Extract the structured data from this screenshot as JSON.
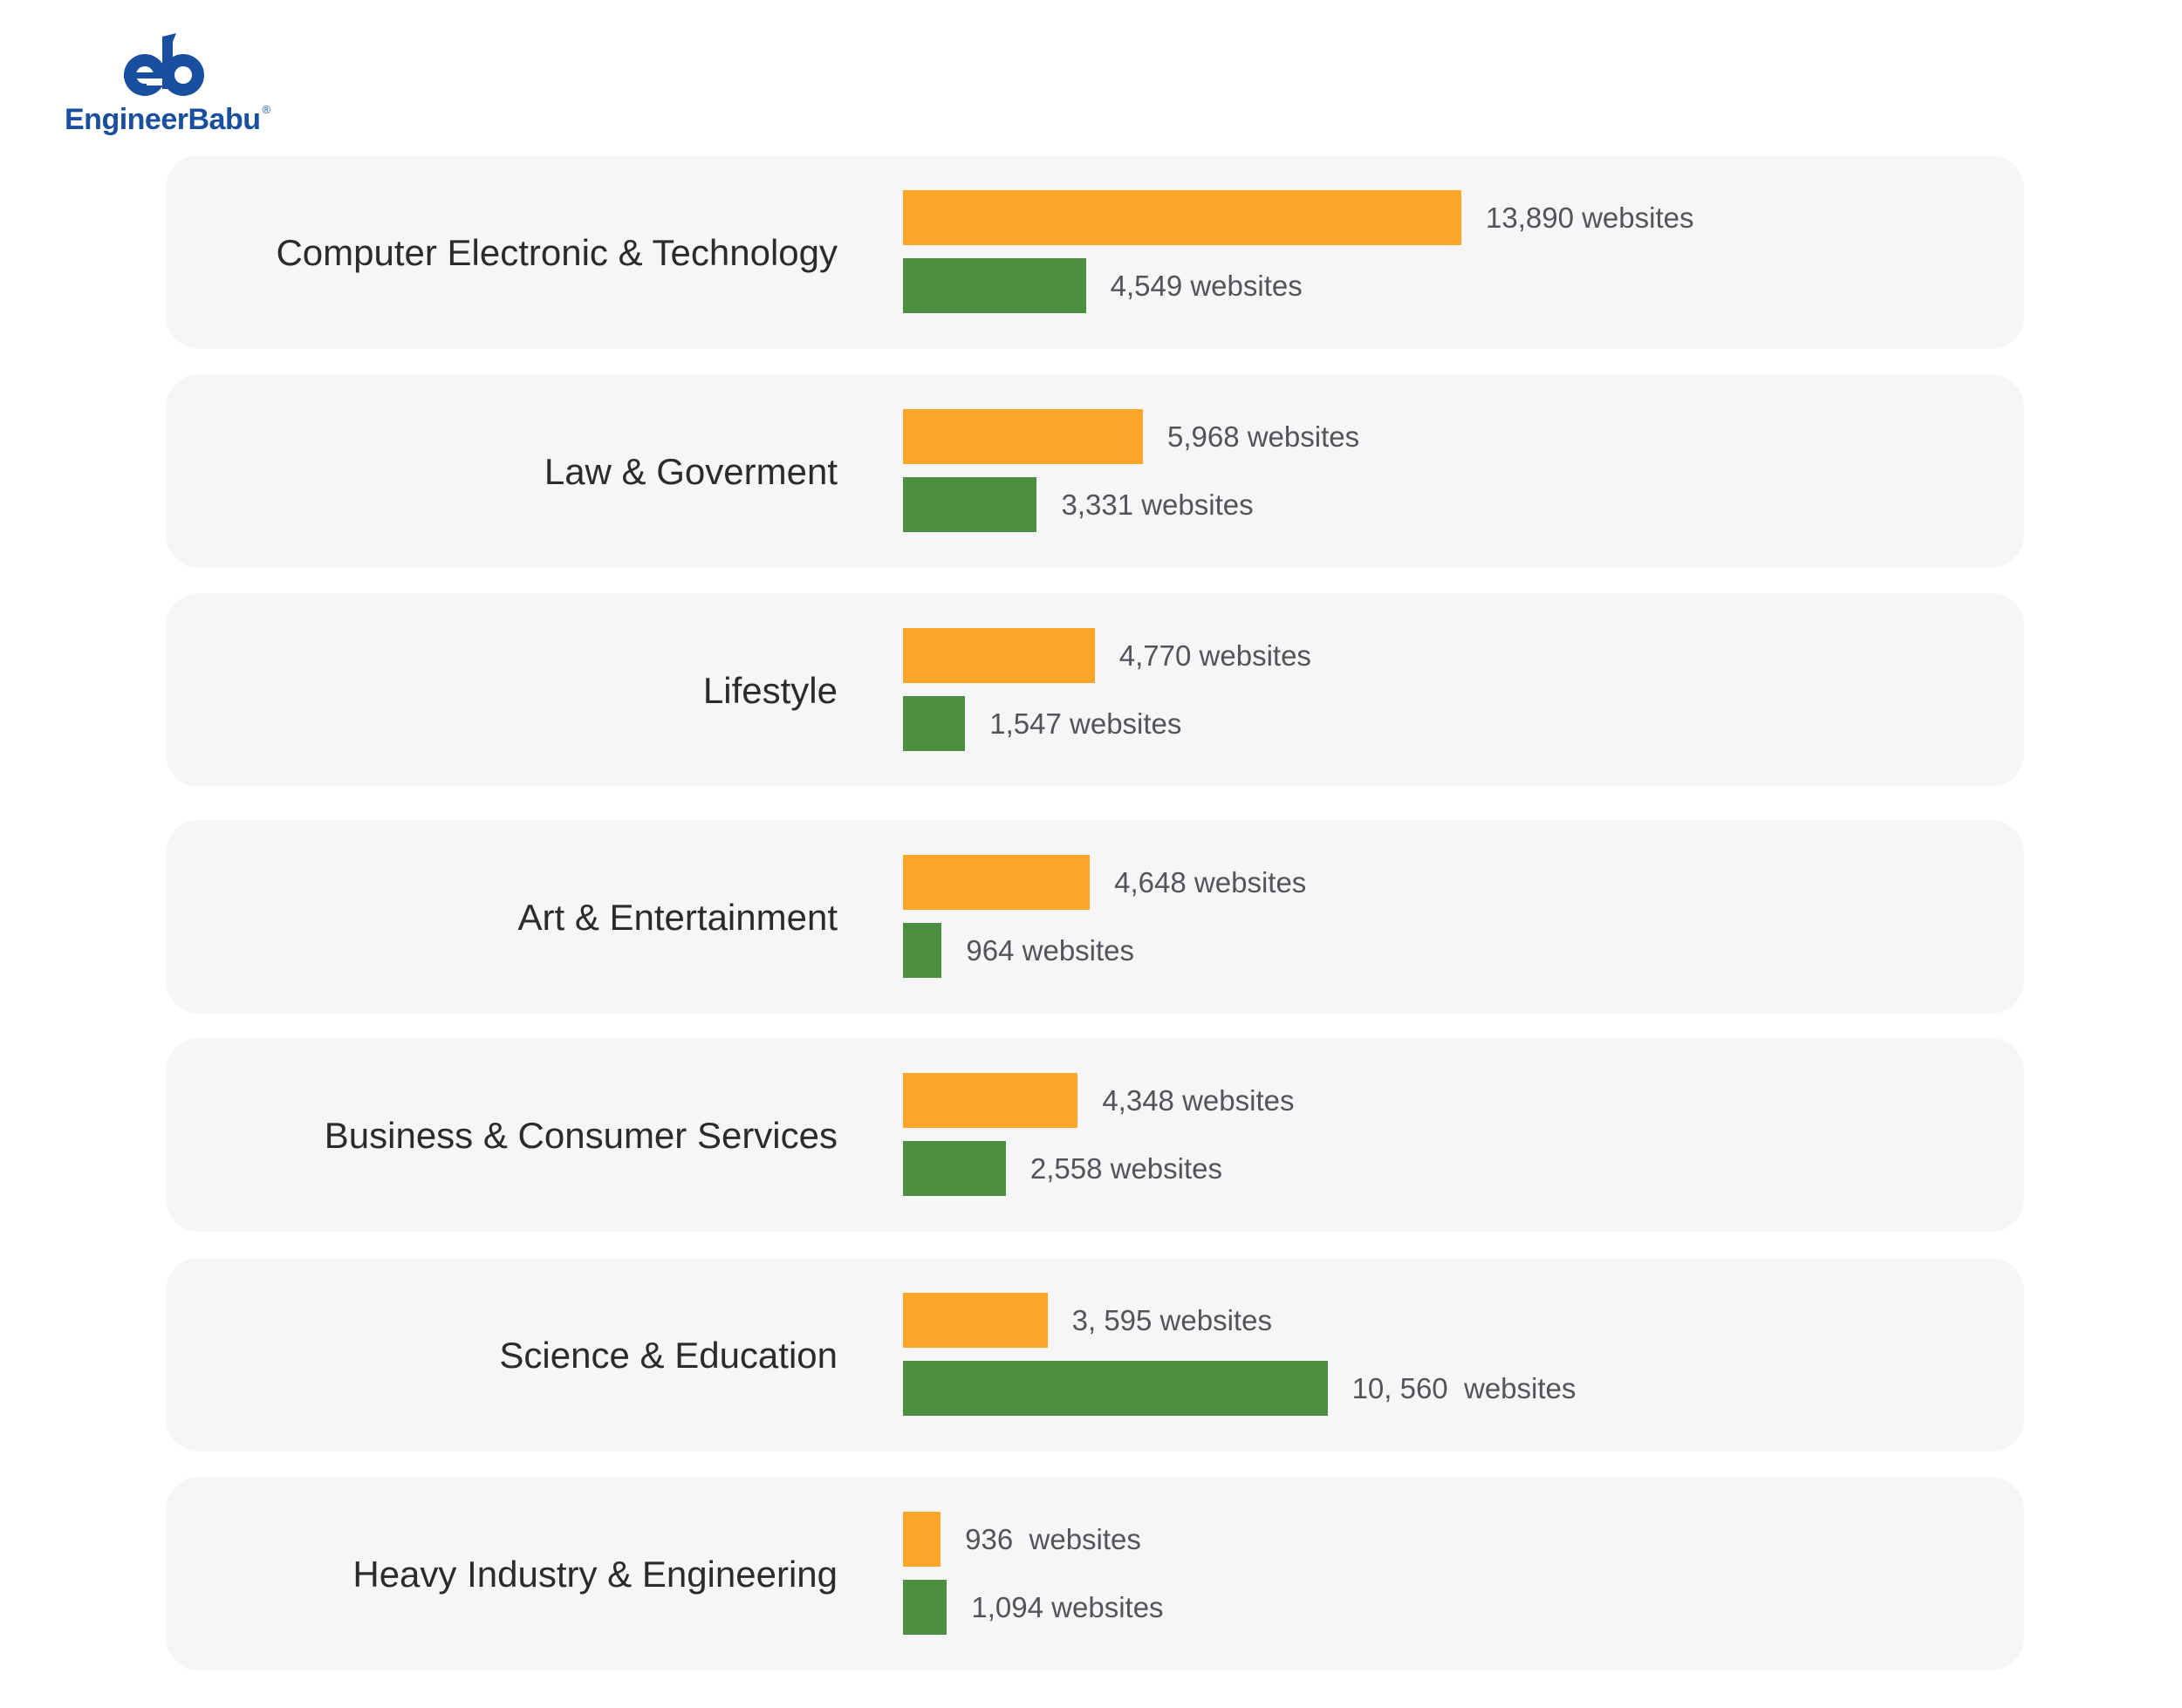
{
  "logo": {
    "text": "EngineerBabu",
    "mark": "eb",
    "registered": "®"
  },
  "colors": {
    "series_1": "#fba529",
    "series_2": "#4b8e3f",
    "card_bg": "#f6f6f8",
    "brand": "#1a4fa0"
  },
  "chart_data": {
    "type": "bar",
    "orientation": "horizontal",
    "title": "",
    "xlabel": "",
    "ylabel": "",
    "unit": "websites",
    "xlim": [
      0,
      13890
    ],
    "categories": [
      "Computer Electronic & Technology",
      "Law & Goverment",
      "Lifestyle",
      "Art & Entertainment",
      "Business & Consumer Services",
      "Science & Education",
      "Heavy Industry & Engineering"
    ],
    "series": [
      {
        "name": "orange",
        "color": "#fba529",
        "values": [
          13890,
          5968,
          4770,
          4648,
          4348,
          3595,
          936
        ],
        "labels": [
          "13,890 websites",
          "5,968 websites",
          "4,770 websites",
          "4,648 websites",
          "4,348 websites",
          "3, 595 websites",
          "936  websites"
        ]
      },
      {
        "name": "green",
        "color": "#4b8e3f",
        "values": [
          4549,
          3331,
          1547,
          964,
          2558,
          10560,
          1094
        ],
        "labels": [
          "4,549 websites",
          "3,331 websites",
          "1,547 websites",
          "964 websites",
          "2,558 websites",
          "10, 560  websites",
          "1,094 websites"
        ]
      }
    ]
  }
}
